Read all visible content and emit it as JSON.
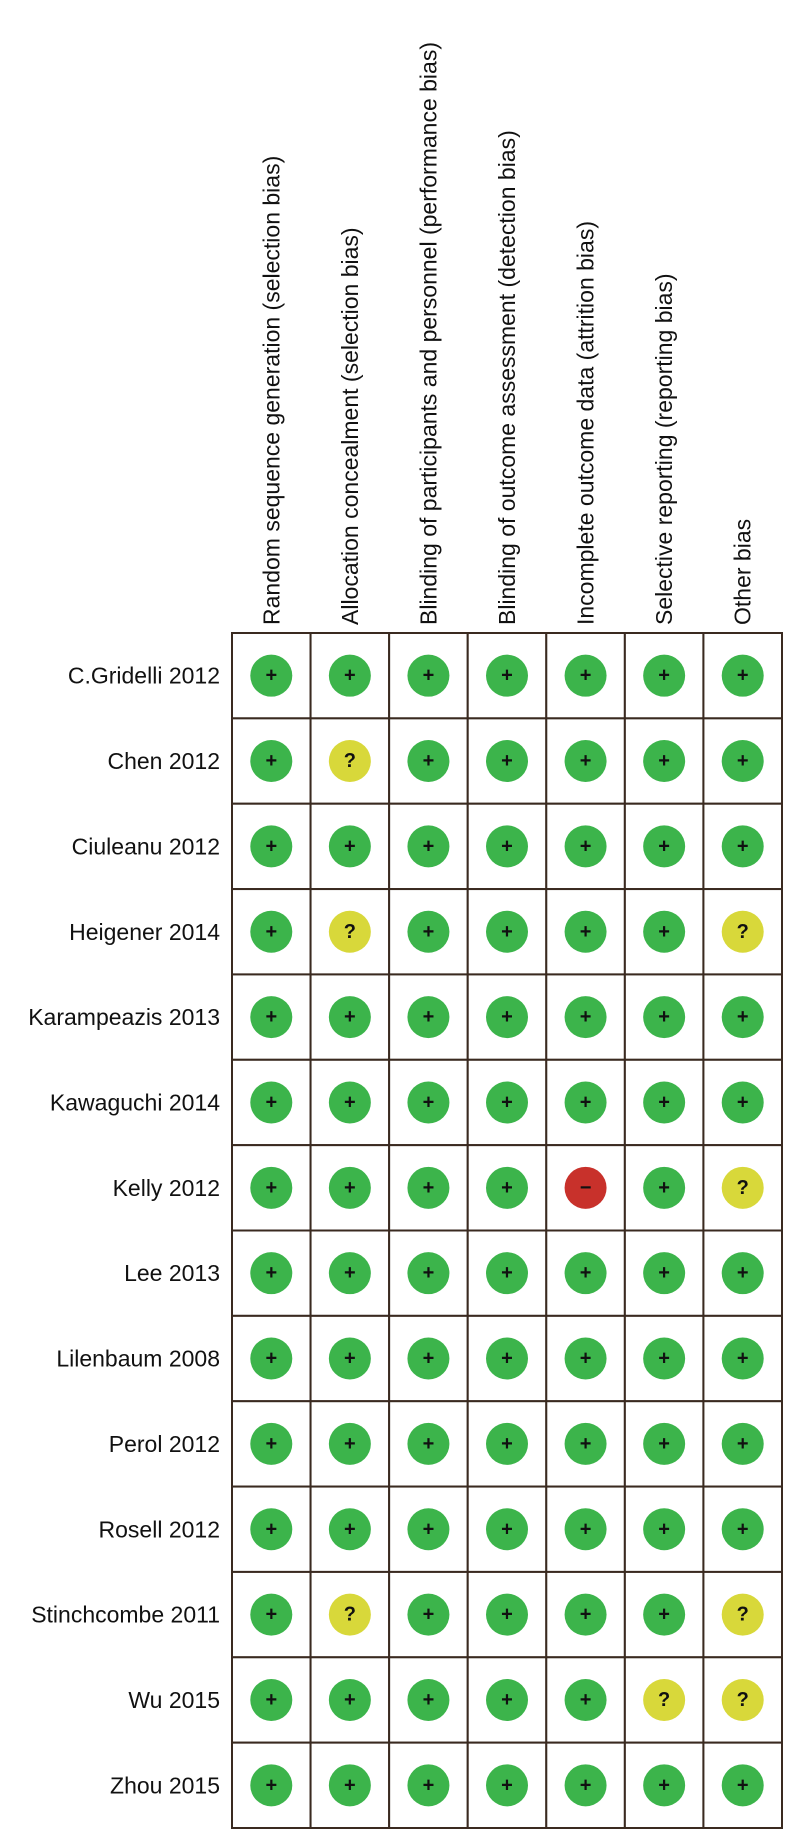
{
  "columns": [
    "Random sequence generation (selection bias)",
    "Allocation concealment (selection bias)",
    "Blinding of participants and personnel (performance bias)",
    "Blinding of outcome assessment (detection bias)",
    "Incomplete outcome data (attrition bias)",
    "Selective reporting (reporting bias)",
    "Other bias"
  ],
  "symbol_colors": {
    "+": "#3cb44b",
    "?": "#d8d83a",
    "−": "#c8312b"
  },
  "rows": [
    {
      "label": "C.Gridelli 2012",
      "cells": [
        "+",
        "+",
        "+",
        "+",
        "+",
        "+",
        "+"
      ]
    },
    {
      "label": "Chen 2012",
      "cells": [
        "+",
        "?",
        "+",
        "+",
        "+",
        "+",
        "+"
      ]
    },
    {
      "label": "Ciuleanu 2012",
      "cells": [
        "+",
        "+",
        "+",
        "+",
        "+",
        "+",
        "+"
      ]
    },
    {
      "label": "Heigener 2014",
      "cells": [
        "+",
        "?",
        "+",
        "+",
        "+",
        "+",
        "?"
      ]
    },
    {
      "label": "Karampeazis 2013",
      "cells": [
        "+",
        "+",
        "+",
        "+",
        "+",
        "+",
        "+"
      ]
    },
    {
      "label": "Kawaguchi 2014",
      "cells": [
        "+",
        "+",
        "+",
        "+",
        "+",
        "+",
        "+"
      ]
    },
    {
      "label": "Kelly 2012",
      "cells": [
        "+",
        "+",
        "+",
        "+",
        "−",
        "+",
        "?"
      ]
    },
    {
      "label": "Lee 2013",
      "cells": [
        "+",
        "+",
        "+",
        "+",
        "+",
        "+",
        "+"
      ]
    },
    {
      "label": "Lilenbaum 2008",
      "cells": [
        "+",
        "+",
        "+",
        "+",
        "+",
        "+",
        "+"
      ]
    },
    {
      "label": "Perol 2012",
      "cells": [
        "+",
        "+",
        "+",
        "+",
        "+",
        "+",
        "+"
      ]
    },
    {
      "label": "Rosell 2012",
      "cells": [
        "+",
        "+",
        "+",
        "+",
        "+",
        "+",
        "+"
      ]
    },
    {
      "label": "Stinchcombe  2011",
      "cells": [
        "+",
        "?",
        "+",
        "+",
        "+",
        "+",
        "?"
      ]
    },
    {
      "label": "Wu 2015",
      "cells": [
        "+",
        "+",
        "+",
        "+",
        "+",
        "?",
        "?"
      ]
    },
    {
      "label": "Zhou 2015",
      "cells": [
        "+",
        "+",
        "+",
        "+",
        "+",
        "+",
        "+"
      ]
    }
  ]
}
